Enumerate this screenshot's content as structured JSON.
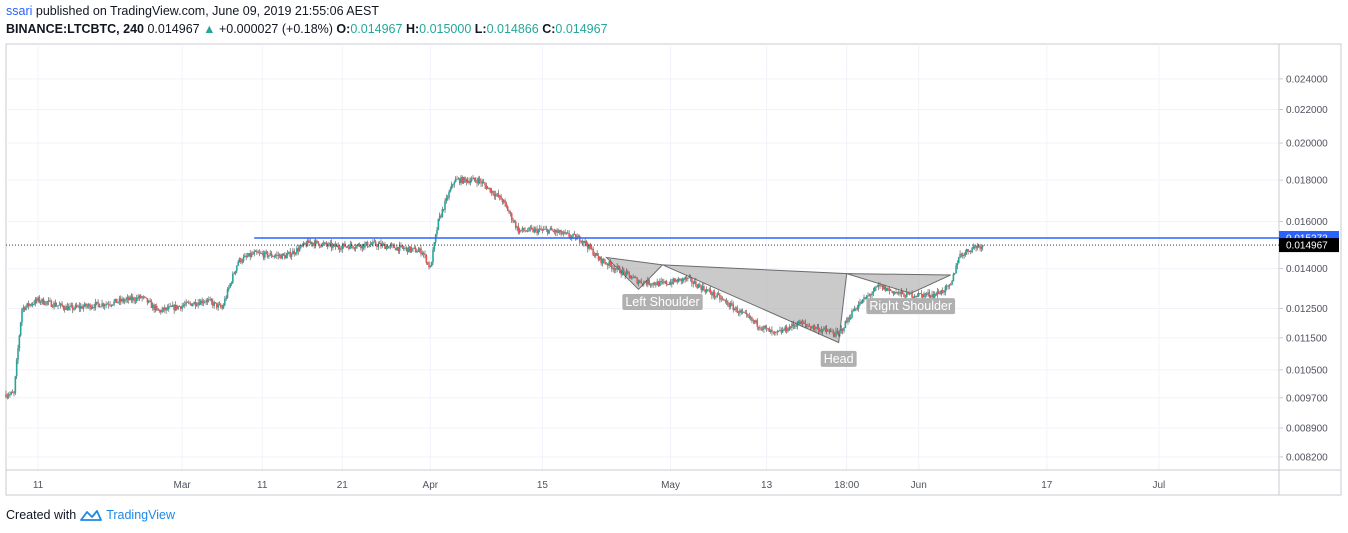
{
  "header": {
    "user": "ssari",
    "published": "published on TradingView.com, June 09, 2019 21:55:06 AEST",
    "symbol": "BINANCE:LTCBTC, 240",
    "last": "0.014967",
    "change": "+0.000027 (+0.18%)",
    "o_label": "O:",
    "o_value": "0.014967",
    "h_label": "H:",
    "h_value": "0.015000",
    "l_label": "L:",
    "l_value": "0.014866",
    "c_label": "C:",
    "c_value": "0.014967"
  },
  "footer": {
    "created_with": "Created with",
    "brand": "TradingView"
  },
  "colors": {
    "up": "#26a69a",
    "down": "#ef5350",
    "level_line": "#2962ff",
    "pattern_fill": "#9e9e9e",
    "label_bg": "#b0b0b0"
  },
  "chart_data": {
    "type": "candlestick",
    "y_ticks": [
      0.0082,
      0.0089,
      0.0097,
      0.0105,
      0.0115,
      0.0125,
      0.014,
      0.016,
      0.018,
      0.02,
      0.022,
      0.024
    ],
    "y_tick_labels": [
      "0.008200",
      "0.008900",
      "0.009700",
      "0.010500",
      "0.011500",
      "0.012500",
      "0.014000",
      "0.016000",
      "0.018000",
      "0.020000",
      "0.022000",
      "0.024000"
    ],
    "y_range": [
      0.0079,
      0.0265
    ],
    "x_ticks": [
      {
        "label": "11",
        "date": "2019-02-11"
      },
      {
        "label": "Mar",
        "date": "2019-03-01"
      },
      {
        "label": "11",
        "date": "2019-03-11"
      },
      {
        "label": "21",
        "date": "2019-03-21"
      },
      {
        "label": "Apr",
        "date": "2019-04-01"
      },
      {
        "label": "15",
        "date": "2019-04-15"
      },
      {
        "label": "May",
        "date": "2019-05-01"
      },
      {
        "label": "13",
        "date": "2019-05-13"
      },
      {
        "label": "18:00",
        "date": "2019-05-23"
      },
      {
        "label": "Jun",
        "date": "2019-06-01"
      },
      {
        "label": "17",
        "date": "2019-06-17"
      },
      {
        "label": "Jul",
        "date": "2019-07-01"
      }
    ],
    "x_range": [
      "2019-02-07",
      "2019-07-16"
    ],
    "price_path": [
      [
        "2019-02-07",
        0.0098
      ],
      [
        "2019-02-08",
        0.0098
      ],
      [
        "2019-02-09",
        0.0125
      ],
      [
        "2019-02-11",
        0.0128
      ],
      [
        "2019-02-15",
        0.0125
      ],
      [
        "2019-02-20",
        0.0127
      ],
      [
        "2019-02-24",
        0.0129
      ],
      [
        "2019-02-26",
        0.0124
      ],
      [
        "2019-03-01",
        0.0126
      ],
      [
        "2019-03-04",
        0.0128
      ],
      [
        "2019-03-06",
        0.0125
      ],
      [
        "2019-03-08",
        0.0143
      ],
      [
        "2019-03-10",
        0.0146
      ],
      [
        "2019-03-14",
        0.0145
      ],
      [
        "2019-03-17",
        0.0151
      ],
      [
        "2019-03-20",
        0.0149
      ],
      [
        "2019-03-25",
        0.015
      ],
      [
        "2019-03-31",
        0.0147
      ],
      [
        "2019-04-01",
        0.014
      ],
      [
        "2019-04-02",
        0.016
      ],
      [
        "2019-04-04",
        0.018
      ],
      [
        "2019-04-07",
        0.018
      ],
      [
        "2019-04-10",
        0.017
      ],
      [
        "2019-04-12",
        0.0156
      ],
      [
        "2019-04-16",
        0.0156
      ],
      [
        "2019-04-20",
        0.0152
      ],
      [
        "2019-04-22",
        0.0144
      ],
      [
        "2019-04-27",
        0.0135
      ],
      [
        "2019-04-30",
        0.0134
      ],
      [
        "2019-05-03",
        0.0136
      ],
      [
        "2019-05-07",
        0.0129
      ],
      [
        "2019-05-11",
        0.0121
      ],
      [
        "2019-05-14",
        0.0116
      ],
      [
        "2019-05-17",
        0.012
      ],
      [
        "2019-05-22",
        0.0116
      ],
      [
        "2019-05-24",
        0.0125
      ],
      [
        "2019-05-27",
        0.0133
      ],
      [
        "2019-05-30",
        0.013
      ],
      [
        "2019-06-03",
        0.013
      ],
      [
        "2019-06-05",
        0.0133
      ],
      [
        "2019-06-06",
        0.0145
      ],
      [
        "2019-06-08",
        0.0149
      ],
      [
        "2019-06-09",
        0.014967
      ]
    ],
    "horizontal_line": {
      "price": 0.015272,
      "from": "2019-03-10",
      "to": "2019-07-16"
    },
    "last_price_line": {
      "price": 0.014967
    },
    "price_tags": [
      {
        "label": "0.015272",
        "price": 0.015272
      },
      {
        "label": "0.014967",
        "price": 0.014967
      }
    ],
    "pattern": {
      "triangles": [
        {
          "points": [
            [
              "2019-04-23",
              0.01445
            ],
            [
              "2019-04-30",
              0.01415
            ],
            [
              "2019-04-27",
              0.0132
            ]
          ]
        },
        {
          "points": [
            [
              "2019-04-30",
              0.01415
            ],
            [
              "2019-05-23",
              0.0138
            ],
            [
              "2019-05-22",
              0.01135
            ]
          ]
        },
        {
          "points": [
            [
              "2019-05-23",
              0.0138
            ],
            [
              "2019-06-05",
              0.01375
            ],
            [
              "2019-05-31",
              0.01305
            ]
          ]
        }
      ],
      "labels": [
        {
          "text": "Left Shoulder",
          "date": "2019-04-30",
          "price": 0.01275
        },
        {
          "text": "Head",
          "date": "2019-05-22",
          "price": 0.01085
        },
        {
          "text": "Right Shoulder",
          "date": "2019-05-31",
          "price": 0.0126
        }
      ]
    }
  }
}
